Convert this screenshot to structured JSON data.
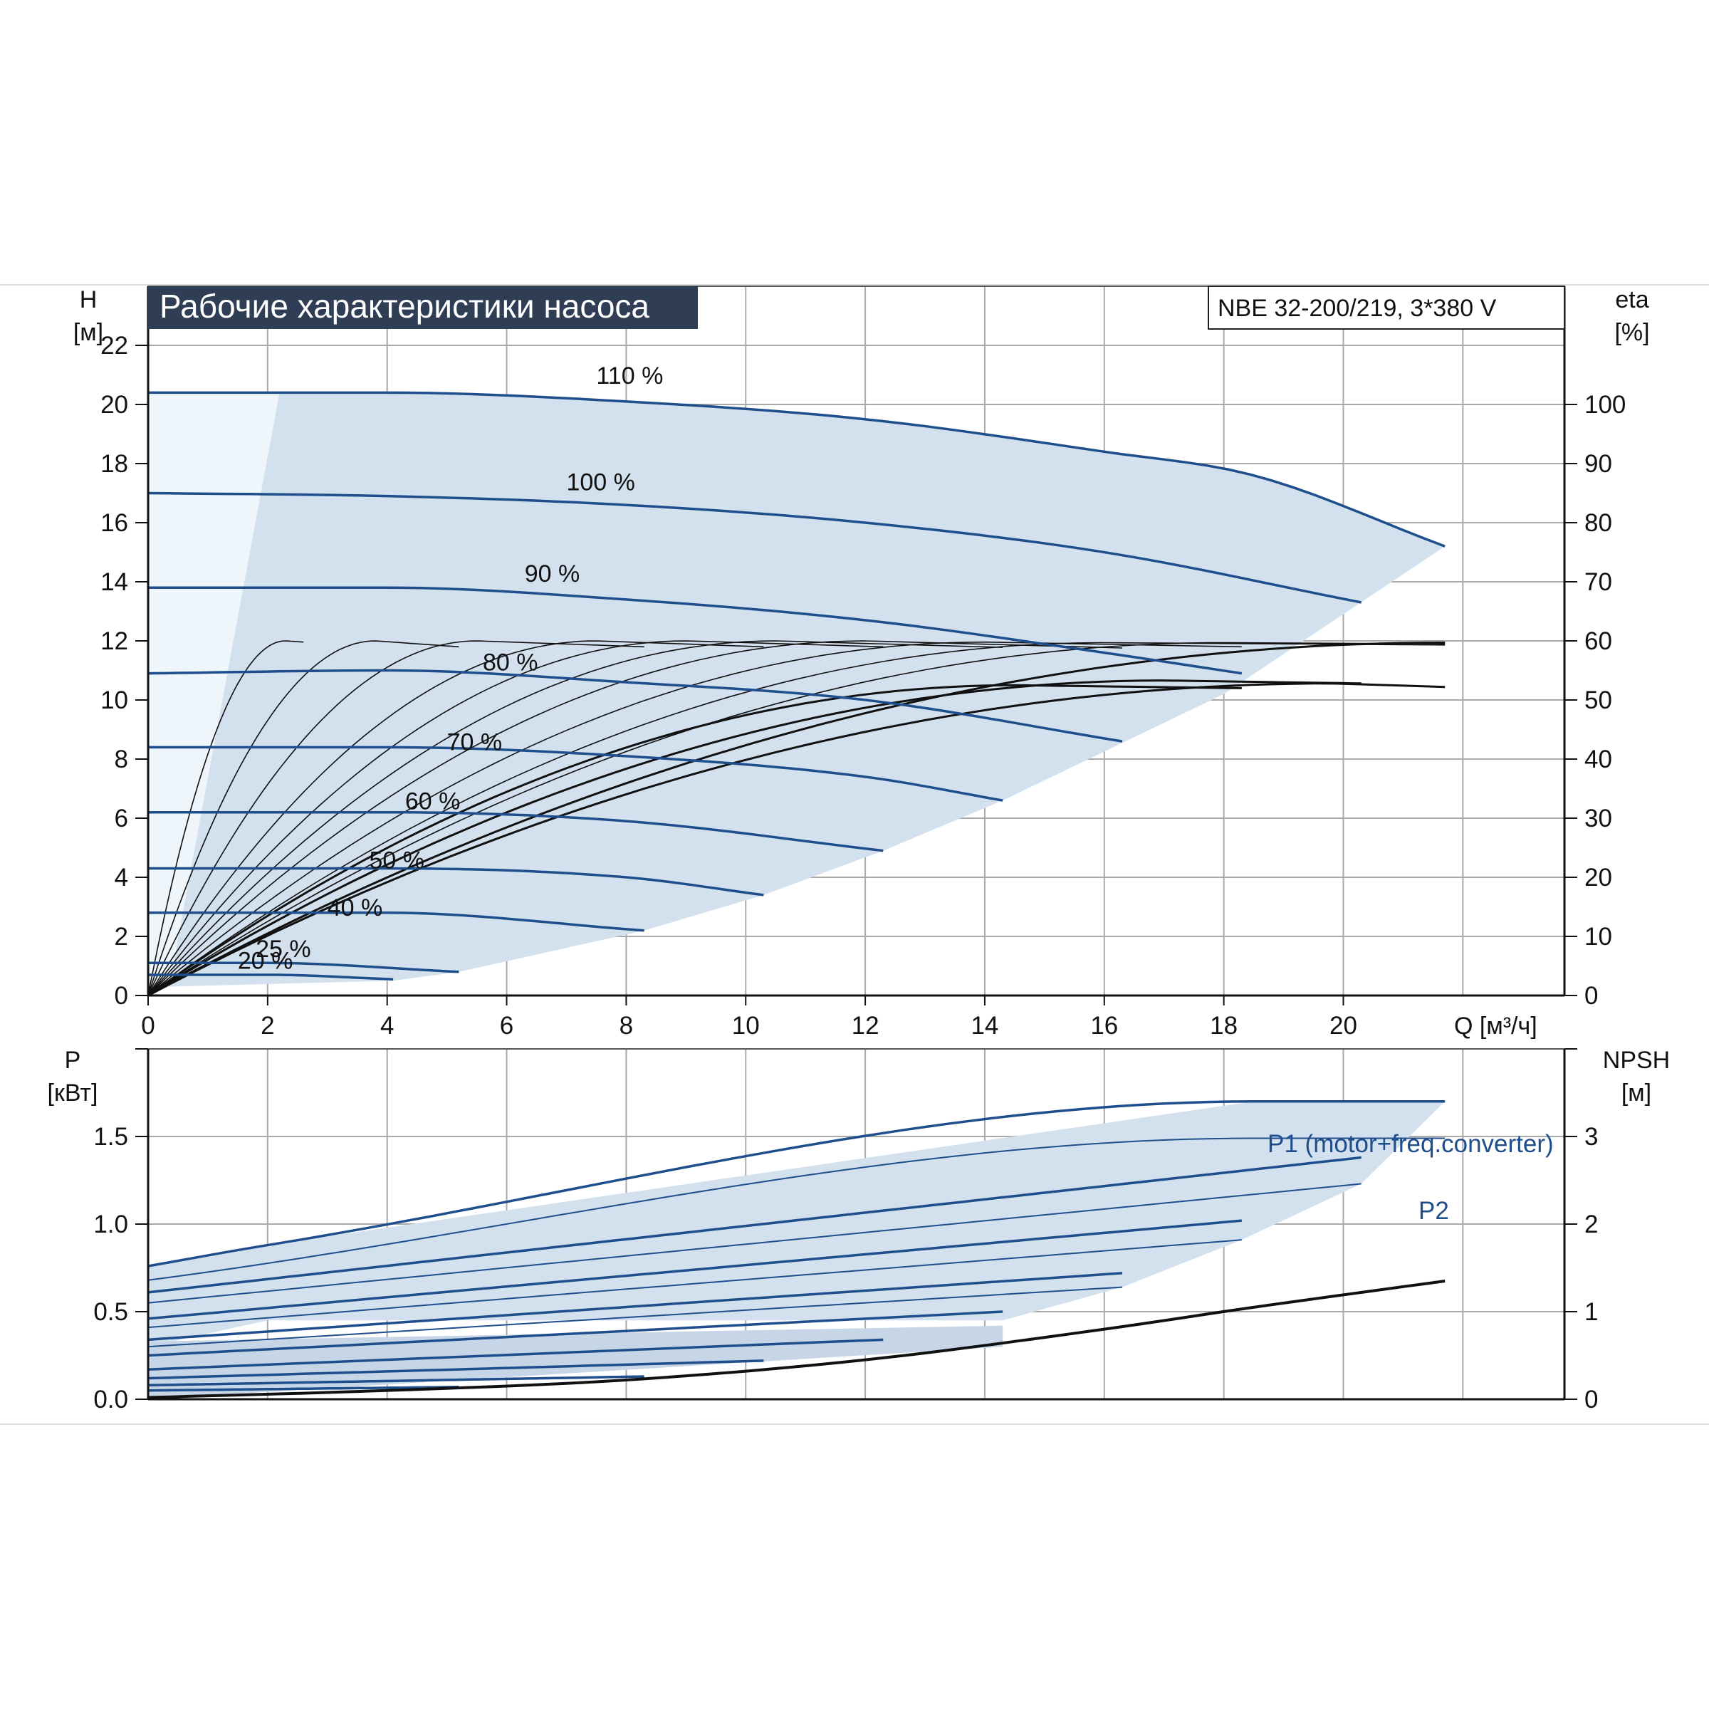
{
  "chart_data": [
    {
      "type": "line",
      "title": "Рабочие характеристики насоса",
      "model": "NBE 32-200/219, 3*380 V",
      "ylabel": "H",
      "yunit": "[м]",
      "y2label": "eta",
      "y2unit": "[%]",
      "xlabel": "Q [м³/ч]",
      "xlim": [
        0,
        23.7
      ],
      "ylim": [
        0,
        24
      ],
      "y2lim": [
        0,
        100
      ],
      "xticks": [
        "0",
        "2",
        "4",
        "6",
        "8",
        "10",
        "12",
        "14",
        "16",
        "18",
        "20"
      ],
      "yticks": [
        "0",
        "2",
        "4",
        "6",
        "8",
        "10",
        "12",
        "14",
        "16",
        "18",
        "20",
        "22"
      ],
      "y2ticks": [
        "0",
        "10",
        "20",
        "30",
        "40",
        "50",
        "60",
        "70",
        "80",
        "90",
        "100"
      ],
      "grid": true,
      "head_curves": [
        {
          "label": "110 %",
          "x": [
            0,
            4,
            8,
            12,
            16,
            18.5,
            21.7
          ],
          "y": [
            20.4,
            20.4,
            20.1,
            19.5,
            18.4,
            17.6,
            15.2
          ]
        },
        {
          "label": "100 %",
          "x": [
            0,
            4,
            8,
            12,
            16,
            20.3
          ],
          "y": [
            17.0,
            16.9,
            16.6,
            16.0,
            15.0,
            13.3
          ]
        },
        {
          "label": "90 %",
          "x": [
            0,
            4,
            8,
            12,
            16,
            18.3
          ],
          "y": [
            13.8,
            13.8,
            13.4,
            12.7,
            11.6,
            10.9
          ]
        },
        {
          "label": "80 %",
          "x": [
            0,
            4,
            8,
            12,
            16.3
          ],
          "y": [
            10.9,
            11.0,
            10.6,
            10.0,
            8.6
          ]
        },
        {
          "label": "70 %",
          "x": [
            0,
            4,
            8,
            12,
            14.3
          ],
          "y": [
            8.4,
            8.4,
            8.1,
            7.4,
            6.6
          ]
        },
        {
          "label": "60 %",
          "x": [
            0,
            4,
            8,
            12.3
          ],
          "y": [
            6.2,
            6.2,
            5.9,
            4.9
          ]
        },
        {
          "label": "50 %",
          "x": [
            0,
            4,
            8,
            10.3
          ],
          "y": [
            4.3,
            4.3,
            4.0,
            3.4
          ]
        },
        {
          "label": "40 %",
          "x": [
            0,
            4,
            8.3
          ],
          "y": [
            2.8,
            2.8,
            2.2
          ]
        },
        {
          "label": "25 %",
          "x": [
            0,
            2,
            5.2
          ],
          "y": [
            1.1,
            1.1,
            0.8
          ]
        },
        {
          "label": "20 %",
          "x": [
            0,
            2,
            4.1
          ],
          "y": [
            0.7,
            0.7,
            0.55
          ]
        }
      ],
      "efficiency_curves": [
        {
          "qmax": 21.7,
          "etamax": 59.7,
          "qend": 21.7,
          "etaend": 59.6
        },
        {
          "qmax": 19.8,
          "etamax": 52.8,
          "qend": 21.7,
          "etaend": 52.2
        },
        {
          "qmax": 18.0,
          "etamax": 59.7,
          "qend": 21.7,
          "etaend": 59.5
        },
        {
          "qmax": 16.0,
          "etamax": 59.7,
          "qend": 21.7,
          "etaend": 59.3
        },
        {
          "qmax": 14.0,
          "etamax": 59.8,
          "qend": 18.3,
          "etaend": 59.0
        },
        {
          "qmax": 12.0,
          "etamax": 60.0,
          "qend": 16.3,
          "etaend": 58.8
        },
        {
          "qmax": 10.5,
          "etamax": 60.0,
          "qend": 14.3,
          "etaend": 58.9
        },
        {
          "qmax": 9.0,
          "etamax": 60.0,
          "qend": 12.3,
          "etaend": 59.0
        },
        {
          "qmax": 7.5,
          "etamax": 60.0,
          "qend": 10.3,
          "etaend": 59.0
        },
        {
          "qmax": 5.5,
          "etamax": 60.0,
          "qend": 8.3,
          "etaend": 59.0
        },
        {
          "qmax": 3.8,
          "etamax": 60.0,
          "qend": 5.2,
          "etaend": 59.0
        },
        {
          "qmax": 2.3,
          "etamax": 60.0,
          "qend": 2.6,
          "etaend": 59.8
        },
        {
          "qmax": 17.0,
          "etamax": 53.3,
          "qend": 20.3,
          "etaend": 52.8
        },
        {
          "qmax": 14.5,
          "etamax": 52.5,
          "qend": 18.3,
          "etaend": 52.0
        }
      ]
    },
    {
      "type": "line",
      "ylabel": "P",
      "yunit": "[кВт]",
      "y2label": "NPSH",
      "y2unit": "[м]",
      "xlim": [
        0,
        23.7
      ],
      "ylim": [
        0,
        2.0
      ],
      "y2lim": [
        0,
        4
      ],
      "yticks": [
        "0.0",
        "0.5",
        "1.0",
        "1.5"
      ],
      "y2ticks": [
        "0",
        "1",
        "2",
        "3"
      ],
      "grid": true,
      "p1_label": "P1 (motor+freq.converter)",
      "p2_label": "P2",
      "power_curves": [
        {
          "name": "P1",
          "x": [
            0,
            2,
            18.5,
            21.7
          ],
          "y": [
            0.76,
            0.88,
            1.7,
            1.7
          ]
        },
        {
          "name": "P2",
          "x": [
            0,
            18.5,
            21.7
          ],
          "y": [
            0.68,
            1.49,
            1.49
          ]
        },
        {
          "name": "P1",
          "x": [
            0,
            20.3
          ],
          "y": [
            0.61,
            1.38
          ]
        },
        {
          "name": "P2",
          "x": [
            0,
            20.3
          ],
          "y": [
            0.55,
            1.23
          ]
        },
        {
          "name": "P1",
          "x": [
            0,
            18.3
          ],
          "y": [
            0.46,
            1.02
          ]
        },
        {
          "name": "P2",
          "x": [
            0,
            18.3
          ],
          "y": [
            0.41,
            0.91
          ]
        },
        {
          "name": "P1",
          "x": [
            0,
            16.3
          ],
          "y": [
            0.34,
            0.72
          ]
        },
        {
          "name": "P2",
          "x": [
            0,
            16.3
          ],
          "y": [
            0.3,
            0.64
          ]
        },
        {
          "name": "P1",
          "x": [
            0,
            14.3
          ],
          "y": [
            0.25,
            0.5
          ]
        },
        {
          "name": "P1",
          "x": [
            0,
            12.3
          ],
          "y": [
            0.17,
            0.34
          ]
        },
        {
          "name": "P1",
          "x": [
            0,
            10.3
          ],
          "y": [
            0.12,
            0.22
          ]
        },
        {
          "name": "P1",
          "x": [
            0,
            8.3
          ],
          "y": [
            0.08,
            0.13
          ]
        },
        {
          "name": "P1",
          "x": [
            0,
            5.2
          ],
          "y": [
            0.05,
            0.07
          ]
        }
      ],
      "npsh_curve": {
        "x": [
          0,
          4,
          8,
          12,
          16,
          18.5,
          21.7
        ],
        "y": [
          0.02,
          0.1,
          0.22,
          0.45,
          0.8,
          1.05,
          1.35
        ]
      }
    }
  ]
}
